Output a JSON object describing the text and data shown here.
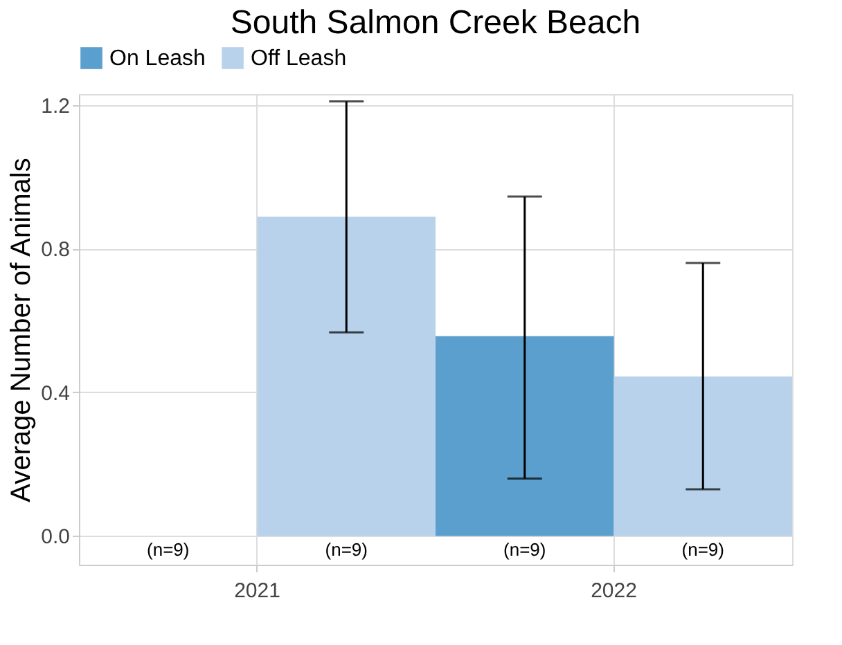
{
  "chart_data": {
    "type": "bar",
    "title": "South Salmon Creek Beach",
    "ylabel": "Average Number of Animals",
    "categories": [
      "2021",
      "2022"
    ],
    "series": [
      {
        "name": "On Leash",
        "color": "#5b9fce",
        "values": [
          0,
          0.556
        ],
        "errors": [
          null,
          [
            0.16,
            0.945
          ]
        ]
      },
      {
        "name": "Off Leash",
        "color": "#b9d2ec",
        "values": [
          0.889,
          0.444
        ],
        "errors": [
          [
            0.567,
            1.21
          ],
          [
            0.13,
            0.76
          ]
        ]
      }
    ],
    "ylim": [
      -0.08,
      1.23
    ],
    "yticks": [
      {
        "value": 0,
        "label": "0.0"
      },
      0.4,
      0.8,
      1.2
    ],
    "grid": true,
    "legend": "top",
    "annotations": [
      "(n=9)",
      "(n=9)",
      "(n=9)",
      "(n=9)"
    ]
  }
}
